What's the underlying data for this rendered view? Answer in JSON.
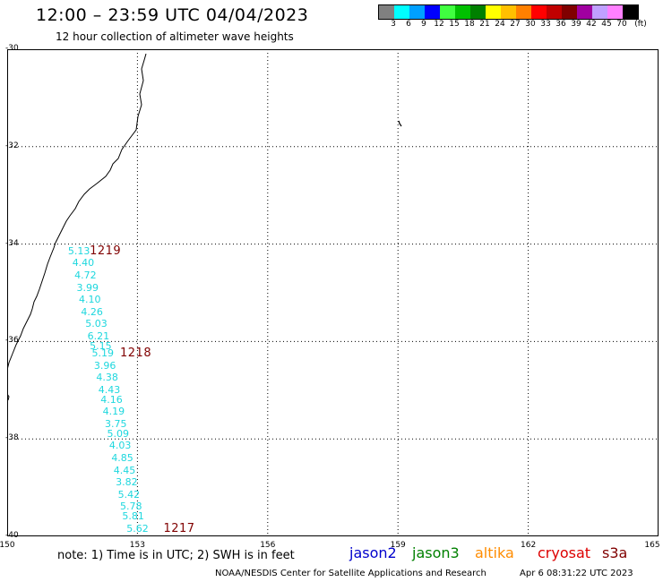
{
  "header": {
    "title": "12:00 – 23:59 UTC 04/04/2023",
    "subtitle": "12 hour collection of altimeter wave heights"
  },
  "legend": {
    "unit": "(ft)",
    "colors": [
      "#808080",
      "#00ffff",
      "#00a0ff",
      "#0000ff",
      "#40ff40",
      "#00c000",
      "#008000",
      "#ffff00",
      "#ffc000",
      "#ff8000",
      "#ff0000",
      "#c00000",
      "#800000",
      "#a000a0",
      "#c0a0ff",
      "#ff80ff",
      "#000000"
    ],
    "labels": [
      "3",
      "6",
      "9",
      "12",
      "15",
      "18",
      "21",
      "24",
      "27",
      "30",
      "33",
      "36",
      "39",
      "42",
      "45",
      "70"
    ]
  },
  "axes": {
    "lat_labels": [
      "-30",
      "-32",
      "-34",
      "-36",
      "-38",
      "-40"
    ],
    "lon_labels": [
      "150",
      "153",
      "156",
      "159",
      "162",
      "165"
    ]
  },
  "observations": [
    {
      "value": "5.13",
      "lat": -34.15,
      "lon": 151.4
    },
    {
      "value": "4.40",
      "lat": -34.4,
      "lon": 151.5
    },
    {
      "value": "4.72",
      "lat": -34.65,
      "lon": 151.55
    },
    {
      "value": "3.99",
      "lat": -34.9,
      "lon": 151.6
    },
    {
      "value": "4.10",
      "lat": -35.15,
      "lon": 151.65
    },
    {
      "value": "4.26",
      "lat": -35.4,
      "lon": 151.7
    },
    {
      "value": "5.03",
      "lat": -35.65,
      "lon": 151.8
    },
    {
      "value": "6.21",
      "lat": -35.9,
      "lon": 151.85
    },
    {
      "value": "5.15",
      "lat": -36.1,
      "lon": 151.9
    },
    {
      "value": "5.19",
      "lat": -36.25,
      "lon": 151.95
    },
    {
      "value": "3.96",
      "lat": -36.5,
      "lon": 152.0
    },
    {
      "value": "4.38",
      "lat": -36.75,
      "lon": 152.05
    },
    {
      "value": "4.43",
      "lat": -37.0,
      "lon": 152.1
    },
    {
      "value": "4.16",
      "lat": -37.2,
      "lon": 152.15
    },
    {
      "value": "4.19",
      "lat": -37.45,
      "lon": 152.2
    },
    {
      "value": "3.75",
      "lat": -37.7,
      "lon": 152.25
    },
    {
      "value": "5.09",
      "lat": -37.9,
      "lon": 152.3
    },
    {
      "value": "4.03",
      "lat": -38.15,
      "lon": 152.35
    },
    {
      "value": "4.85",
      "lat": -38.4,
      "lon": 152.4
    },
    {
      "value": "4.45",
      "lat": -38.65,
      "lon": 152.45
    },
    {
      "value": "3.82",
      "lat": -38.9,
      "lon": 152.5
    },
    {
      "value": "5.42",
      "lat": -39.15,
      "lon": 152.55
    },
    {
      "value": "5.78",
      "lat": -39.4,
      "lon": 152.6
    },
    {
      "value": "5.81",
      "lat": -39.6,
      "lon": 152.65
    },
    {
      "value": "5.62",
      "lat": -39.85,
      "lon": 152.75
    }
  ],
  "pass_times": [
    {
      "value": "1219",
      "lat": -34.15,
      "lon": 151.9
    },
    {
      "value": "1218",
      "lat": -36.25,
      "lon": 152.6
    },
    {
      "value": "1217",
      "lat": -39.85,
      "lon": 153.6
    }
  ],
  "footer": {
    "note": "note:  1) Time is in UTC;  2) SWH is in feet",
    "satellites": [
      {
        "name": "jason2",
        "color": "#0000cc"
      },
      {
        "name": "jason3",
        "color": "#008000"
      },
      {
        "name": "altika",
        "color": "#ff8c00"
      },
      {
        "name": "cryosat",
        "color": "#dd0000"
      },
      {
        "name": "s3a",
        "color": "#800000"
      }
    ],
    "credit": "NOAA/NESDIS Center for Satellite Applications and Research",
    "generated": "Apr  6 08:31:22 UTC 2023"
  }
}
